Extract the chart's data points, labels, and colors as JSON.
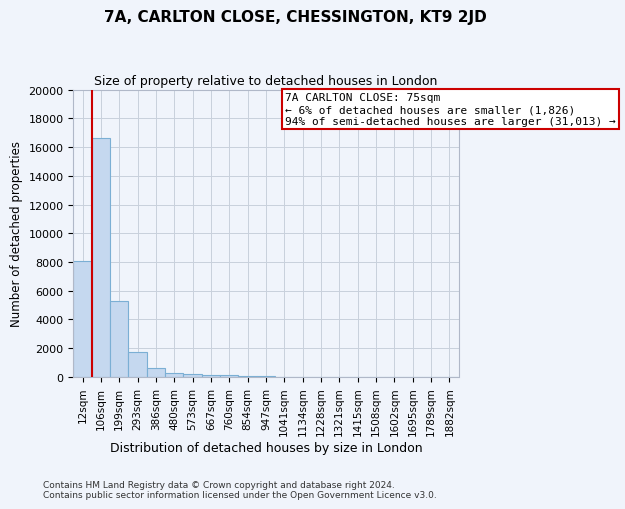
{
  "title": "7A, CARLTON CLOSE, CHESSINGTON, KT9 2JD",
  "subtitle": "Size of property relative to detached houses in London",
  "xlabel": "Distribution of detached houses by size in London",
  "ylabel": "Number of detached properties",
  "bar_color": "#c5d8ef",
  "bar_edge_color": "#7bafd4",
  "categories": [
    "12sqm",
    "106sqm",
    "199sqm",
    "293sqm",
    "386sqm",
    "480sqm",
    "573sqm",
    "667sqm",
    "760sqm",
    "854sqm",
    "947sqm",
    "1041sqm",
    "1134sqm",
    "1228sqm",
    "1321sqm",
    "1415sqm",
    "1508sqm",
    "1602sqm",
    "1695sqm",
    "1789sqm",
    "1882sqm"
  ],
  "values": [
    8100,
    16600,
    5300,
    1750,
    650,
    300,
    200,
    170,
    120,
    100,
    50,
    30,
    20,
    15,
    10,
    8,
    6,
    5,
    4,
    3,
    2
  ],
  "ylim": [
    0,
    20000
  ],
  "yticks": [
    0,
    2000,
    4000,
    6000,
    8000,
    10000,
    12000,
    14000,
    16000,
    18000,
    20000
  ],
  "annotation_title": "7A CARLTON CLOSE: 75sqm",
  "annotation_line1": "← 6% of detached houses are smaller (1,826)",
  "annotation_line2": "94% of semi-detached houses are larger (31,013) →",
  "annotation_box_color": "#ffffff",
  "annotation_box_edge": "#cc0000",
  "red_line_color": "#cc0000",
  "footer1": "Contains HM Land Registry data © Crown copyright and database right 2024.",
  "footer2": "Contains public sector information licensed under the Open Government Licence v3.0.",
  "background_color": "#f0f4fb",
  "grid_color": "#c8d0dc"
}
